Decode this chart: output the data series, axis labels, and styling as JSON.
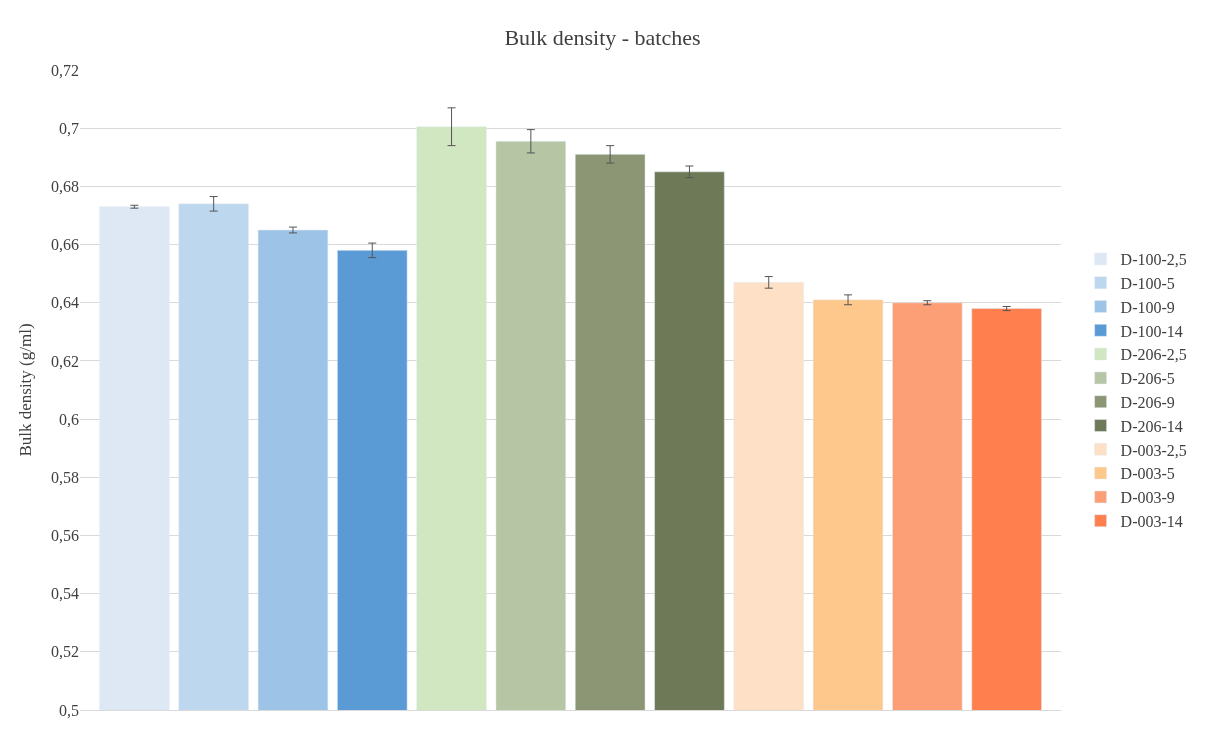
{
  "chart_data": {
    "type": "bar",
    "title": "Bulk density - batches",
    "ylabel": "Bulk density (g/ml)",
    "categories": [
      null
    ],
    "series": [
      {
        "name": "D-100-2,5",
        "color": "#dde8f4",
        "values": [
          0.673
        ],
        "errors": [
          0.0005
        ]
      },
      {
        "name": "D-100-5",
        "color": "#bdd7ee",
        "values": [
          0.674
        ],
        "errors": [
          0.0025
        ]
      },
      {
        "name": "D-100-9",
        "color": "#9dc3e6",
        "values": [
          0.665
        ],
        "errors": [
          0.001
        ]
      },
      {
        "name": "D-100-14",
        "color": "#5b9bd5",
        "values": [
          0.658
        ],
        "errors": [
          0.0025
        ]
      },
      {
        "name": "D-206-2,5",
        "color": "#d0e7c1",
        "values": [
          0.7005
        ],
        "errors": [
          0.0065
        ]
      },
      {
        "name": "D-206-5",
        "color": "#b6c5a4",
        "values": [
          0.6955
        ],
        "errors": [
          0.004
        ]
      },
      {
        "name": "D-206-9",
        "color": "#8c9675",
        "values": [
          0.691
        ],
        "errors": [
          0.003
        ]
      },
      {
        "name": "D-206-14",
        "color": "#6e7a57",
        "values": [
          0.685
        ],
        "errors": [
          0.002
        ]
      },
      {
        "name": "D-003-2,5",
        "color": "#fde0c6",
        "values": [
          0.647
        ],
        "errors": [
          0.002
        ]
      },
      {
        "name": "D-003-5",
        "color": "#fec78b",
        "values": [
          0.641
        ],
        "errors": [
          0.0017
        ]
      },
      {
        "name": "D-003-9",
        "color": "#fd9f76",
        "values": [
          0.64
        ],
        "errors": [
          0.0007
        ]
      },
      {
        "name": "D-003-14",
        "color": "#ff7f4f",
        "values": [
          0.638
        ],
        "errors": [
          0.0007
        ]
      }
    ],
    "ylim": [
      0.5,
      0.72
    ],
    "yticks": [
      {
        "value": 0.5,
        "label": "0,5"
      },
      {
        "value": 0.52,
        "label": "0,52"
      },
      {
        "value": 0.54,
        "label": "0,54"
      },
      {
        "value": 0.56,
        "label": "0,56"
      },
      {
        "value": 0.58,
        "label": "0,58"
      },
      {
        "value": 0.6,
        "label": "0,6"
      },
      {
        "value": 0.62,
        "label": "0,62"
      },
      {
        "value": 0.64,
        "label": "0,64"
      },
      {
        "value": 0.66,
        "label": "0,66"
      },
      {
        "value": 0.68,
        "label": "0,68"
      },
      {
        "value": 0.7,
        "label": "0,7"
      },
      {
        "value": 0.72,
        "label": "0,72"
      }
    ],
    "grid": "y",
    "legend": "right",
    "tick_labels": "y"
  }
}
